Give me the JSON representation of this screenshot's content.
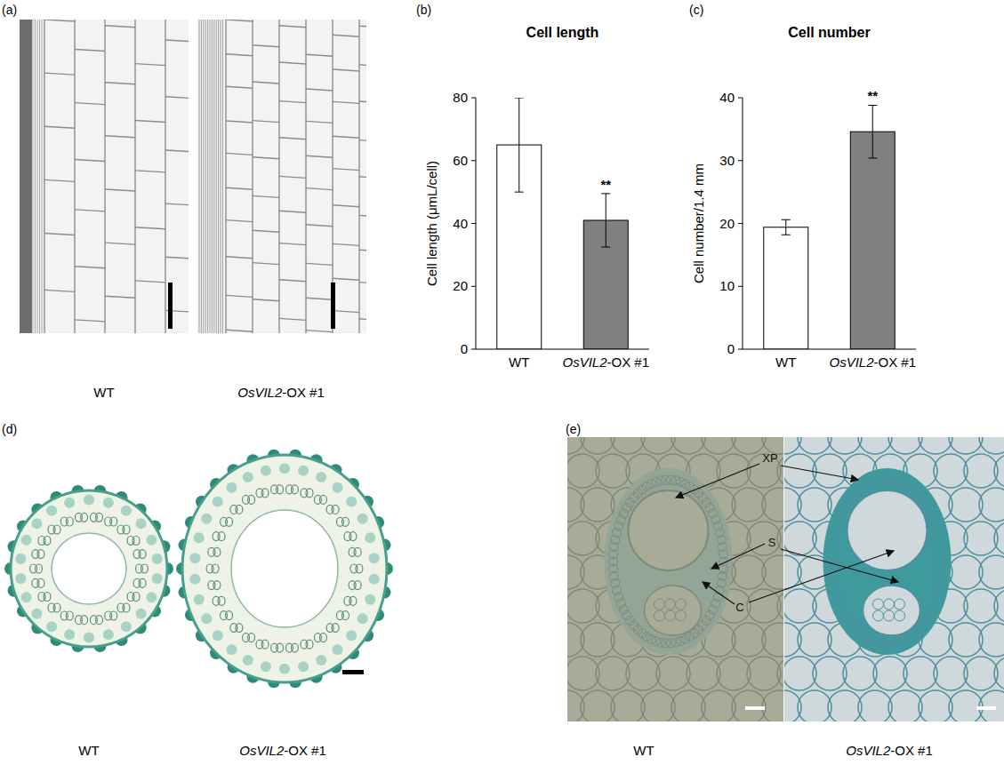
{
  "chart_data": [
    {
      "type": "bar",
      "label": "(b)",
      "title": "Cell length",
      "y_label": "Cell length (μmL/cell)",
      "categories": [
        "WT",
        "OsVIL2-OX #1"
      ],
      "values": [
        65,
        41
      ],
      "errors": [
        15,
        8.5
      ],
      "colors": [
        "#ffffff",
        "#808080"
      ],
      "ylim": [
        0,
        80
      ],
      "yticks": [
        0,
        20,
        40,
        60,
        80
      ],
      "annotations": [
        {
          "index": 1,
          "text": "**"
        }
      ]
    },
    {
      "type": "bar",
      "label": "(c)",
      "title": "Cell number",
      "y_label": "Cell number/1.4 mm",
      "categories": [
        "WT",
        "OsVIL2-OX #1"
      ],
      "values": [
        19.4,
        34.6
      ],
      "errors": [
        1.2,
        4.2
      ],
      "colors": [
        "#ffffff",
        "#808080"
      ],
      "ylim": [
        0,
        40
      ],
      "yticks": [
        0,
        10,
        20,
        30,
        40
      ],
      "annotations": [
        {
          "index": 1,
          "text": "**"
        }
      ]
    }
  ],
  "figure": {
    "panel_a": {
      "label": "(a)",
      "captions": [
        "WT",
        "OsVIL2-OX #1"
      ]
    },
    "panel_d": {
      "label": "(d)",
      "captions": [
        "WT",
        "OsVIL2-OX #1"
      ]
    },
    "panel_e": {
      "label": "(e)",
      "captions": [
        "WT",
        "OsVIL2-OX #1"
      ],
      "annotations": [
        "XP",
        "S",
        "C"
      ]
    }
  }
}
